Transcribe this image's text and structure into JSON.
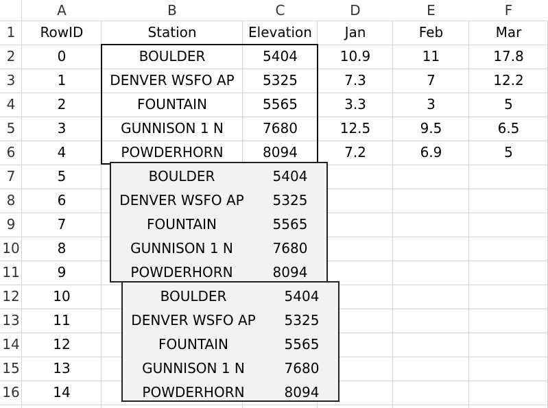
{
  "columns": [
    "A",
    "B",
    "C",
    "D",
    "E",
    "F"
  ],
  "row_numbers": [
    "1",
    "2",
    "3",
    "4",
    "5",
    "6",
    "7",
    "8",
    "9",
    "10",
    "11",
    "12",
    "13",
    "14",
    "15",
    "16"
  ],
  "header_row": [
    "RowID",
    "Station",
    "Elevation",
    "Jan",
    "Feb",
    "Mar"
  ],
  "data_rows": [
    [
      "0",
      "BOULDER",
      "5404",
      "10.9",
      "11",
      "17.8"
    ],
    [
      "1",
      "DENVER WSFO AP",
      "5325",
      "7.3",
      "7",
      "12.2"
    ],
    [
      "2",
      "FOUNTAIN",
      "5565",
      "3.3",
      "3",
      "5"
    ],
    [
      "3",
      "GUNNISON 1 N",
      "7680",
      "12.5",
      "9.5",
      "6.5"
    ],
    [
      "4",
      "POWDERHORN",
      "8094",
      "7.2",
      "6.9",
      "5"
    ]
  ],
  "row_ids_extra": [
    "5",
    "6",
    "7",
    "8",
    "9",
    "10",
    "11",
    "12",
    "13",
    "14"
  ],
  "floating_copies": [
    {
      "rows": [
        {
          "station": "BOULDER",
          "elevation": "5404"
        },
        {
          "station": "DENVER WSFO AP",
          "elevation": "5325"
        },
        {
          "station": "FOUNTAIN",
          "elevation": "5565"
        },
        {
          "station": "GUNNISON 1 N",
          "elevation": "7680"
        },
        {
          "station": "POWDERHORN",
          "elevation": "8094"
        }
      ]
    },
    {
      "rows": [
        {
          "station": "BOULDER",
          "elevation": "5404"
        },
        {
          "station": "DENVER WSFO AP",
          "elevation": "5325"
        },
        {
          "station": "FOUNTAIN",
          "elevation": "5565"
        },
        {
          "station": "GUNNISON 1 N",
          "elevation": "7680"
        },
        {
          "station": "POWDERHORN",
          "elevation": "8094"
        }
      ]
    }
  ]
}
